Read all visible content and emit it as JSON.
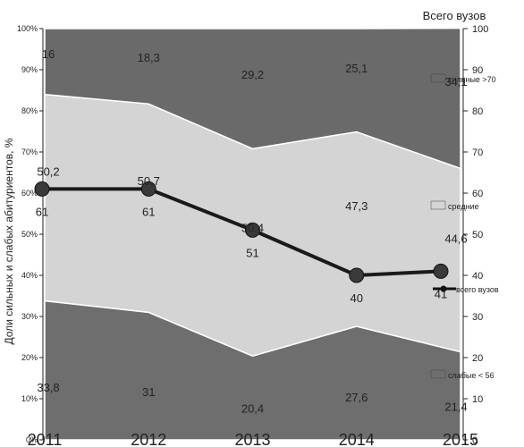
{
  "chart_data": {
    "type": "area",
    "categories": [
      "2011",
      "2012",
      "2013",
      "2014",
      "2015"
    ],
    "stacked": true,
    "ylabel": "Доли сильных и слабых абитуриентов, %",
    "ylim": [
      0,
      100
    ],
    "y_ticks": [
      "0%",
      "10%",
      "20%",
      "30%",
      "40%",
      "50%",
      "60%",
      "70%",
      "80%",
      "90%",
      "100%"
    ],
    "series": [
      {
        "name": "слабые < 56",
        "values": [
          33.8,
          31,
          20.4,
          27.6,
          21.4
        ],
        "labels": [
          "33,8",
          "31",
          "20,4",
          "27,6",
          "21,4"
        ],
        "color": "#6e6e6e"
      },
      {
        "name": "средние",
        "values": [
          50.2,
          50.7,
          50.4,
          47.3,
          44.6
        ],
        "labels": [
          "50,2",
          "50,7",
          "50,4",
          "47,3",
          "44,6"
        ],
        "color": "#d4d4d4"
      },
      {
        "name": "сильные >70",
        "values": [
          16,
          18.3,
          29.2,
          25.1,
          34.1
        ],
        "labels": [
          "16",
          "18,3",
          "29,2",
          "25,1",
          "34,1"
        ],
        "color": "#6a6a6a"
      }
    ],
    "line_series": {
      "name": "всего вузов",
      "axis": "right",
      "values": [
        61,
        61,
        51,
        40,
        41
      ],
      "labels": [
        "61",
        "61",
        "51",
        "40",
        "41"
      ]
    },
    "y2label": "Всего вузов",
    "y2lim": [
      0,
      100
    ],
    "y2_ticks": [
      "0",
      "10",
      "20",
      "30",
      "40",
      "50",
      "60",
      "70",
      "80",
      "90",
      "100"
    ],
    "legend": "right"
  }
}
